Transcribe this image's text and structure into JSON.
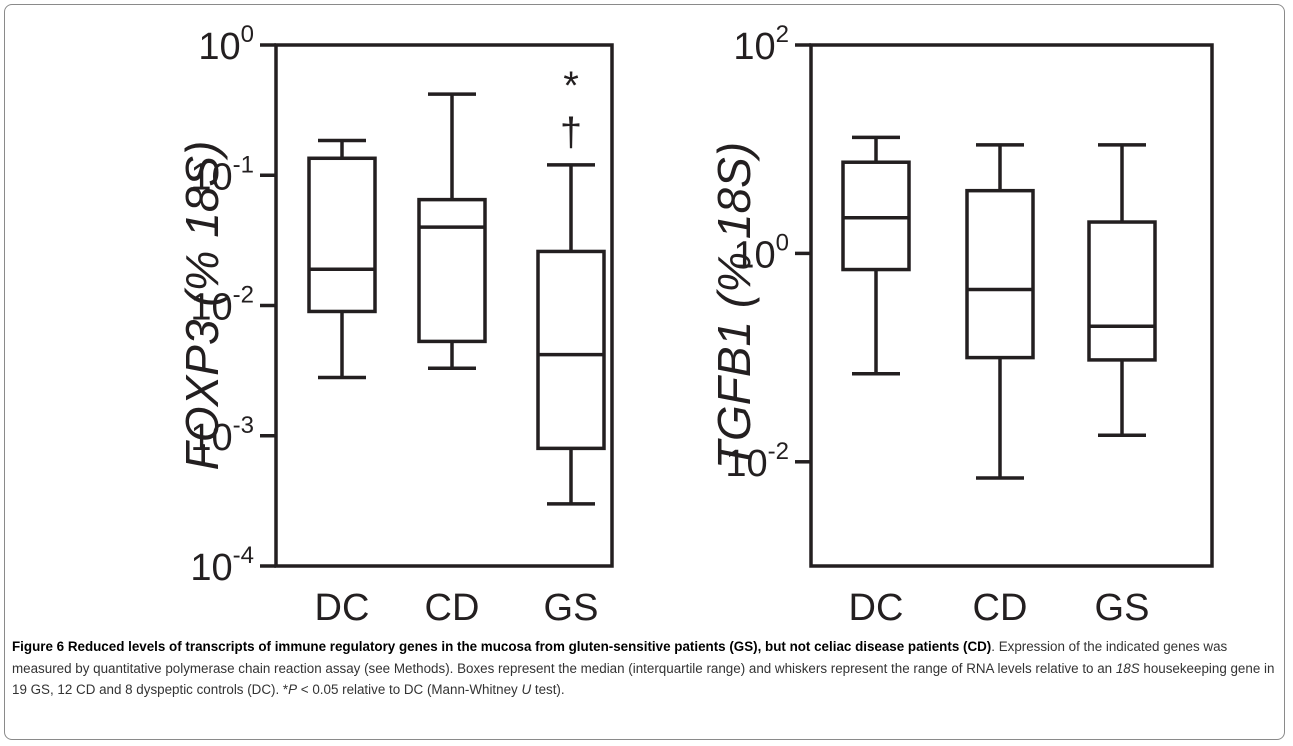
{
  "chart_data": [
    {
      "type": "box",
      "ylabel": "FOXP3 (% 18S)",
      "yscale": "log",
      "ylim": [
        0.0001,
        1
      ],
      "ticks": [
        {
          "exp": "0",
          "value": 1
        },
        {
          "exp": "-1",
          "value": 0.1
        },
        {
          "exp": "-2",
          "value": 0.01
        },
        {
          "exp": "-3",
          "value": 0.001
        },
        {
          "exp": "-4",
          "value": 0.0001
        }
      ],
      "categories": [
        "DC",
        "CD",
        "GS"
      ],
      "boxes": [
        {
          "category": "DC",
          "min": 0.0028,
          "q1": 0.009,
          "median": 0.019,
          "q3": 0.135,
          "max": 0.185
        },
        {
          "category": "CD",
          "min": 0.0033,
          "q1": 0.0053,
          "median": 0.04,
          "q3": 0.065,
          "max": 0.42
        },
        {
          "category": "GS",
          "min": 0.0003,
          "q1": 0.0008,
          "median": 0.0042,
          "q3": 0.026,
          "max": 0.12
        }
      ],
      "annotations": [
        {
          "category": "GS",
          "text": "*",
          "value": 0.5
        },
        {
          "category": "GS",
          "text": "†",
          "value": 0.22
        }
      ]
    },
    {
      "type": "box",
      "ylabel": "TGFB1 (% 18S)",
      "yscale": "log",
      "ylim": [
        0.001,
        100
      ],
      "ticks": [
        {
          "exp": "2",
          "value": 100
        },
        {
          "exp": "0",
          "value": 1
        },
        {
          "exp": "-2",
          "value": 0.01
        }
      ],
      "categories": [
        "DC",
        "CD",
        "GS"
      ],
      "boxes": [
        {
          "category": "DC",
          "min": 0.07,
          "q1": 0.7,
          "median": 2.2,
          "q3": 7.5,
          "max": 13
        },
        {
          "category": "CD",
          "min": 0.007,
          "q1": 0.1,
          "median": 0.45,
          "q3": 4.0,
          "max": 11
        },
        {
          "category": "GS",
          "min": 0.018,
          "q1": 0.095,
          "median": 0.2,
          "q3": 2.0,
          "max": 11
        }
      ]
    }
  ],
  "caption": {
    "label": "Figure 6",
    "title": "Reduced levels of transcripts of immune regulatory genes in the mucosa from gluten-sensitive patients (GS), but not celiac disease patients (CD)",
    "text_1": ". Expression of the indicated genes was measured by quantitative polymerase chain reaction assay (see Methods). Boxes represent the median (interquartile range) and whiskers represent the range of RNA levels relative to an ",
    "gene_18s": "18S",
    "text_2": " housekeeping gene in 19 GS, 12 CD and 8 dyspeptic controls (DC). *",
    "p_symbol": "P",
    "text_3": " < 0.05 relative to DC (Mann-Whitney ",
    "u_symbol": "U",
    "text_4": " test)."
  }
}
